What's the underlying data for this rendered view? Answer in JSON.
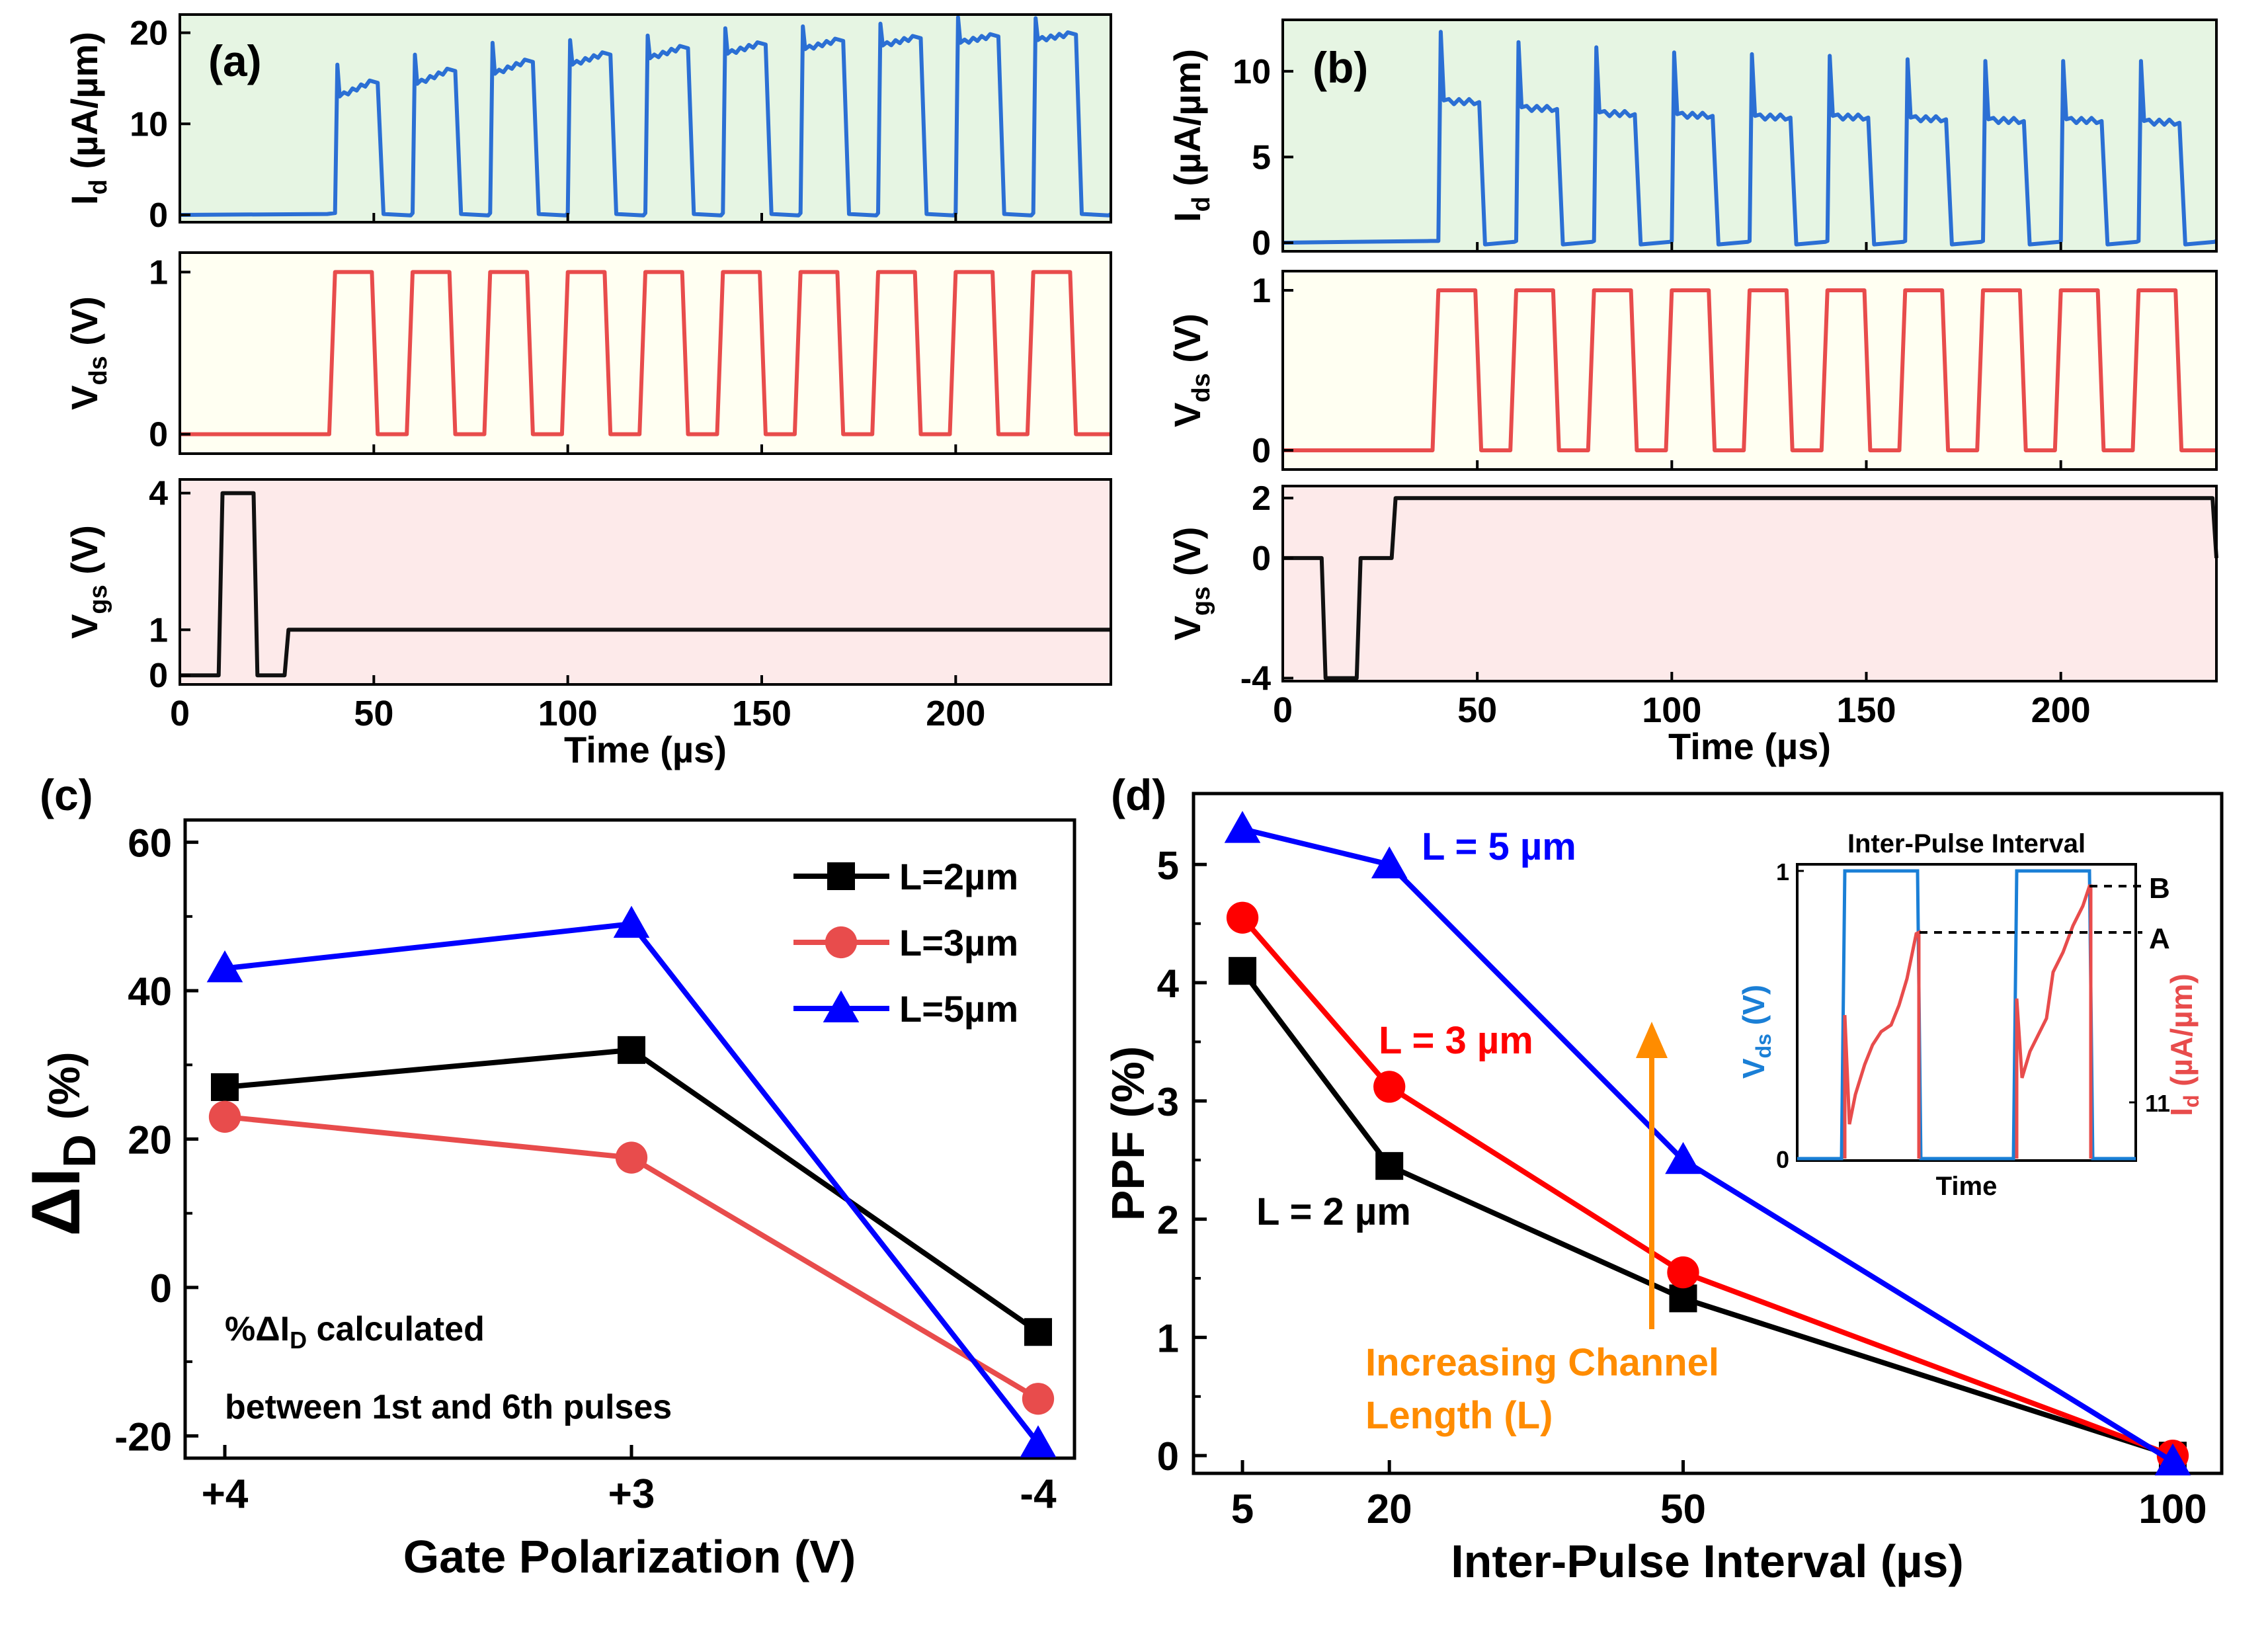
{
  "chart_data": [
    {
      "panel": "(a)",
      "type": "line",
      "xlabel": "Time (µs)",
      "x_ticks": [
        "0",
        "50",
        "100",
        "150",
        "200"
      ],
      "xlim": [
        0,
        240
      ],
      "subplots": [
        {
          "ylabel_main": "I",
          "ylabel_sub": "d",
          "ylabel_rest": " (µA/µm)",
          "ylim": [
            -0.8,
            22
          ],
          "y_ticks": [
            0,
            10,
            20
          ],
          "y_tick_labels": [
            "0",
            "10",
            "20"
          ],
          "background": "#e6f5e3",
          "color": "#2b6fd4",
          "series": {
            "pulse_amp_start": [
              13,
              14.4,
              15.5,
              16.5,
              17.2,
              17.7,
              18.2,
              18.6,
              18.9,
              19.2
            ],
            "pulse_amp_end": [
              14.5,
              15.8,
              16.8,
              17.6,
              18.3,
              18.7,
              19.1,
              19.4,
              19.6,
              19.8
            ],
            "pulse_spike": [
              16.5,
              17.6,
              18.9,
              19.2,
              19.7,
              20.5,
              20.7,
              21.0,
              21.7,
              21.6
            ]
          }
        },
        {
          "ylabel_main": "V",
          "ylabel_sub": "ds",
          "ylabel_rest": " (V)",
          "ylim": [
            -0.12,
            1.12
          ],
          "y_ticks": [
            0,
            1
          ],
          "y_tick_labels": [
            "0",
            "1"
          ],
          "background": "#fffff2",
          "color": "#e84c4c",
          "series": {
            "pulse_high": 1,
            "pulse_low": 0
          }
        },
        {
          "ylabel_main": "V",
          "ylabel_sub": "gs",
          "ylabel_rest": " (V)",
          "ylim": [
            -0.2,
            4.3
          ],
          "y_ticks": [
            0,
            1,
            4
          ],
          "y_tick_labels": [
            "0",
            "1",
            "4"
          ],
          "background": "#fdeaea",
          "color": "#111111",
          "series": {
            "x": [
              0,
              10,
              11,
              19,
              20,
              27,
              28,
              240
            ],
            "y": [
              0,
              0,
              4,
              4,
              0,
              0,
              1,
              1
            ]
          }
        }
      ]
    },
    {
      "panel": "(b)",
      "type": "line",
      "xlabel": "Time (µs)",
      "x_ticks": [
        "0",
        "50",
        "100",
        "150",
        "200"
      ],
      "xlim": [
        0,
        240
      ],
      "subplots": [
        {
          "ylabel_main": "I",
          "ylabel_sub": "d",
          "ylabel_rest": " (µA/µm)",
          "ylim": [
            -0.5,
            13
          ],
          "y_ticks": [
            0,
            5,
            10
          ],
          "y_tick_labels": [
            "0",
            "5",
            "10"
          ],
          "background": "#e6f5e3",
          "color": "#2b6fd4",
          "series": {
            "pulse_level": [
              8.2,
              7.8,
              7.5,
              7.4,
              7.3,
              7.3,
              7.2,
              7.1,
              7.1,
              7.0
            ],
            "pulse_spike": [
              12.3,
              11.7,
              11.4,
              11.1,
              11.0,
              10.9,
              10.7,
              10.6,
              10.6,
              10.6
            ]
          }
        },
        {
          "ylabel_main": "V",
          "ylabel_sub": "ds",
          "ylabel_rest": " (V)",
          "ylim": [
            -0.12,
            1.12
          ],
          "y_ticks": [
            0,
            1
          ],
          "y_tick_labels": [
            "0",
            "1"
          ],
          "background": "#fffff2",
          "color": "#e84c4c",
          "series": {
            "pulse_high": 1,
            "pulse_low": 0
          }
        },
        {
          "ylabel_main": "V",
          "ylabel_sub": "gs",
          "ylabel_rest": " (V)",
          "ylim": [
            -4.1,
            2.4
          ],
          "y_ticks": [
            -4,
            0,
            2
          ],
          "y_tick_labels": [
            "-4",
            "0",
            "2"
          ],
          "background": "#fdeaea",
          "color": "#111111",
          "series": {
            "x": [
              0,
              10,
              11,
              19,
              20,
              28,
              29,
              239,
              240
            ],
            "y": [
              0,
              0,
              -4,
              -4,
              0,
              0,
              2,
              2,
              0
            ]
          }
        }
      ]
    },
    {
      "panel": "(c)",
      "type": "line",
      "xlabel": "Gate Polarization (V)",
      "ylabel_main": "ΔI",
      "ylabel_sub": "D",
      "ylabel_rest": "(%)",
      "categories": [
        "+4",
        "+3",
        "-4"
      ],
      "ylim": [
        -23,
        63
      ],
      "y_ticks": [
        -20,
        0,
        20,
        40,
        60
      ],
      "y_tick_labels": [
        "-20",
        "0",
        "20",
        "40",
        "60"
      ],
      "series": [
        {
          "name": "L=2µm",
          "values": [
            27,
            32,
            -6
          ],
          "color": "#000000",
          "marker": "square"
        },
        {
          "name": "L=3µm",
          "values": [
            23,
            17.5,
            -15
          ],
          "color": "#e84c4c",
          "marker": "circle"
        },
        {
          "name": "L=5µm",
          "values": [
            43,
            49,
            -21
          ],
          "color": "#0000ff",
          "marker": "triangle"
        }
      ],
      "annotation": {
        "line1_pre": "%ΔI",
        "line1_sub": "D",
        "line1_post": " calculated",
        "line2": "between 1st and 6th pulses"
      }
    },
    {
      "panel": "(d)",
      "type": "line",
      "xlabel": "Inter-Pulse Interval (µs)",
      "ylabel": "PPF (%)",
      "x": [
        5,
        20,
        50,
        100
      ],
      "x_tick_labels": [
        "5",
        "20",
        "50",
        "100"
      ],
      "xlim": [
        0,
        105
      ],
      "ylim": [
        -0.15,
        5.6
      ],
      "y_ticks": [
        0,
        1,
        2,
        3,
        4,
        5
      ],
      "y_tick_labels": [
        "0",
        "1",
        "2",
        "3",
        "4",
        "5"
      ],
      "series": [
        {
          "name": "L = 2 µm",
          "values": [
            4.1,
            2.45,
            1.33,
            0
          ],
          "color": "#000000",
          "marker": "square"
        },
        {
          "name": "L = 3 µm",
          "values": [
            4.55,
            3.12,
            1.55,
            0
          ],
          "color": "#ff0000",
          "marker": "circle"
        },
        {
          "name": "L = 5 µm",
          "values": [
            5.3,
            5.0,
            2.5,
            -0.05
          ],
          "color": "#0000ff",
          "marker": "triangle"
        }
      ],
      "arrow_label_line1": "Increasing Channel",
      "arrow_label_line2": "Length (L)",
      "arrow_color": "#ff8c00",
      "inset": {
        "title": "Inter-Pulse Interval",
        "xlabel": "Time",
        "left_label_main": "V",
        "left_label_sub": "ds",
        "left_label_rest": " (V)",
        "right_label_main": "I",
        "right_label_sub": "d",
        "right_label_rest": " (µA/µm)",
        "left_ticks": [
          "0",
          "1"
        ],
        "right_tick": "11",
        "marker_a": "A",
        "marker_b": "B",
        "vds_color": "#1a7fd6",
        "id_color": "#e84c4c"
      }
    }
  ],
  "panel_labels": {
    "a": "(a)",
    "b": "(b)",
    "c": "(c)",
    "d": "(d)"
  }
}
